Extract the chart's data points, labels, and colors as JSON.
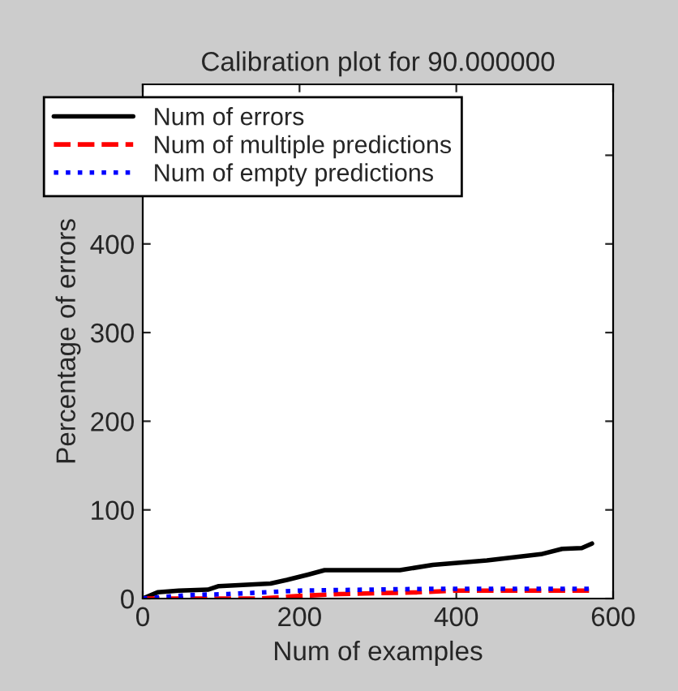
{
  "chart_data": {
    "type": "line",
    "title": "Calibration plot for 90.000000",
    "xlabel": "Num of examples",
    "ylabel": "Percentage of errors",
    "xlim": [
      0,
      600
    ],
    "xticks": [
      0,
      200,
      400,
      600
    ],
    "ylim": [
      0,
      580
    ],
    "yticks": [
      0,
      100,
      200,
      300,
      400,
      {
        "value": 500,
        "label": null
      }
    ],
    "legend": "top left",
    "grid": false,
    "series": [
      {
        "name": "Num of errors",
        "color": "#000000",
        "line_style": "solid",
        "x": [
          0,
          19,
          46,
          83,
          97,
          163,
          184,
          211,
          232,
          328,
          370,
          439,
          508,
          535,
          560,
          573
        ],
        "values": [
          0,
          7,
          9,
          10,
          14,
          17,
          21,
          27,
          32,
          32,
          38,
          43,
          50,
          56,
          57,
          62
        ]
      },
      {
        "name": "Num of multiple predictions",
        "color": "#ff0000",
        "line_style": "dashed",
        "x": [
          0,
          150,
          200,
          250,
          350,
          400,
          575
        ],
        "values": [
          0,
          0,
          3,
          5,
          7,
          9,
          9
        ]
      },
      {
        "name": "Num of empty predictions",
        "color": "#0000ff",
        "line_style": "dotted",
        "x": [
          0,
          60,
          108,
          200,
          370,
          575
        ],
        "values": [
          0,
          4,
          5,
          9,
          11,
          11
        ]
      }
    ]
  }
}
